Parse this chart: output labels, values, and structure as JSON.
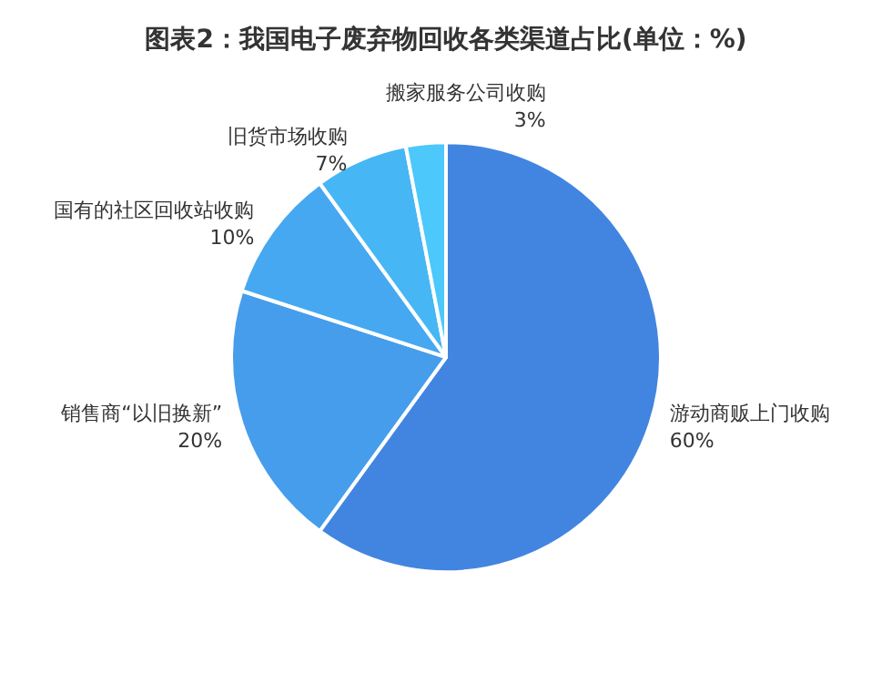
{
  "chart_data": {
    "type": "pie",
    "title": "图表2：我国电子废弃物回收各类渠道占比(单位：%)",
    "categories": [
      "游动商贩上门收购",
      "销售商“以旧换新”",
      "国有的社区回收站收购",
      "旧货市场收购",
      "搬家服务公司收购"
    ],
    "values": [
      60,
      20,
      10,
      7,
      3
    ],
    "value_labels": [
      "60%",
      "20%",
      "10%",
      "7%",
      "3%"
    ],
    "colors": [
      "#4285e0",
      "#459deb",
      "#46a8f0",
      "#47b6f5",
      "#4cc8fa"
    ],
    "legend": false
  }
}
